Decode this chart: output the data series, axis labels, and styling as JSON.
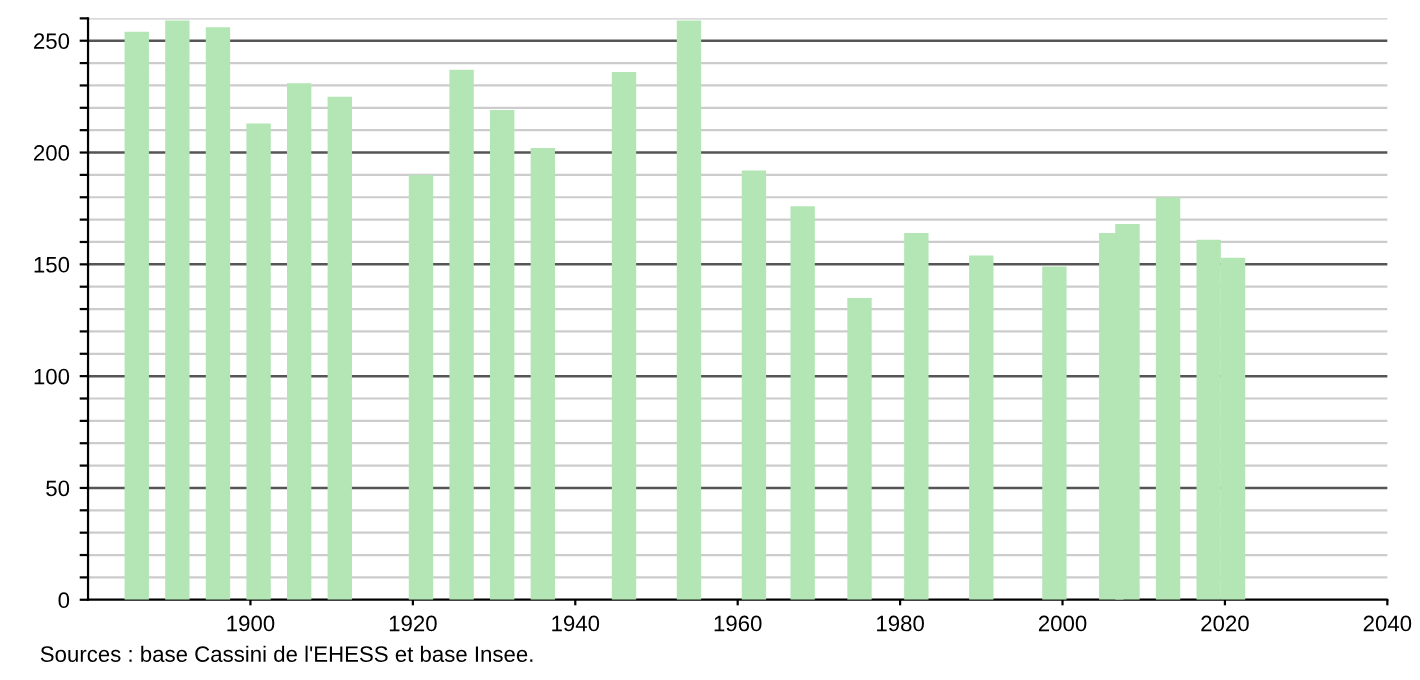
{
  "chart_data": {
    "type": "bar",
    "x": [
      1886,
      1891,
      1896,
      1901,
      1906,
      1911,
      1921,
      1926,
      1931,
      1936,
      1946,
      1954,
      1962,
      1968,
      1975,
      1982,
      1990,
      1999,
      2006,
      2008,
      2013,
      2018,
      2021
    ],
    "values": [
      254,
      259,
      256,
      213,
      231,
      225,
      190,
      237,
      219,
      202,
      236,
      259,
      192,
      176,
      135,
      164,
      154,
      149,
      164,
      168,
      180,
      161,
      153
    ],
    "color": "#b3e5b5",
    "xlim": [
      1880,
      2040
    ],
    "xticks": [
      1900,
      1920,
      1940,
      1960,
      1980,
      2000,
      2020,
      2040
    ],
    "ylim": [
      0,
      260
    ],
    "yticks": [
      0,
      {
        "value": 10,
        "label": null
      },
      {
        "value": 20,
        "label": null
      },
      {
        "value": 30,
        "label": null
      },
      {
        "value": 40,
        "label": null
      },
      50,
      {
        "value": 60,
        "label": null
      },
      {
        "value": 70,
        "label": null
      },
      {
        "value": 80,
        "label": null
      },
      {
        "value": 90,
        "label": null
      },
      100,
      {
        "value": 110,
        "label": null
      },
      {
        "value": 120,
        "label": null
      },
      {
        "value": 130,
        "label": null
      },
      {
        "value": 140,
        "label": null
      },
      150,
      {
        "value": 160,
        "label": null
      },
      {
        "value": 170,
        "label": null
      },
      {
        "value": 180,
        "label": null
      },
      {
        "value": 190,
        "label": null
      },
      200,
      {
        "value": 210,
        "label": null
      },
      {
        "value": 220,
        "label": null
      },
      {
        "value": 230,
        "label": null
      },
      {
        "value": 240,
        "label": null
      },
      250,
      {
        "value": 260,
        "label": null
      }
    ],
    "grid": "y",
    "annotations": [
      "Sources : base Cassini de l'EHESS et base Insee."
    ]
  }
}
